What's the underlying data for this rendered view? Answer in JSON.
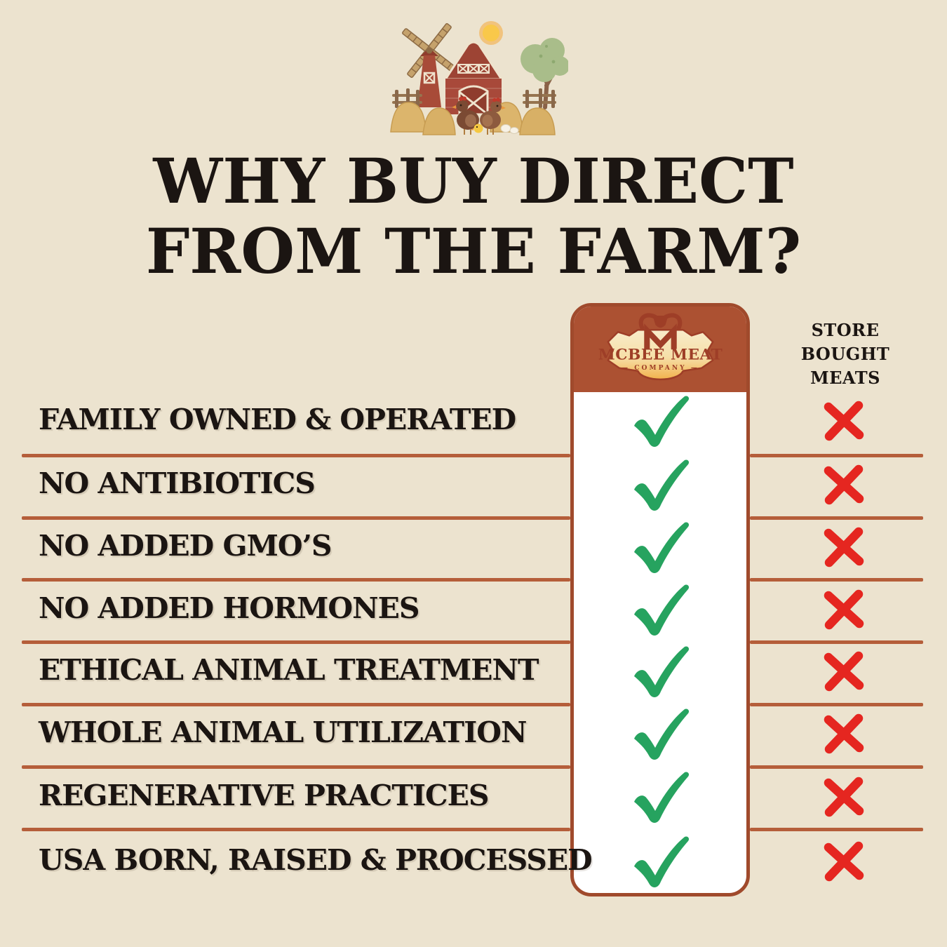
{
  "colors": {
    "bg": "#ece3cf",
    "title": "#1b1512",
    "label": "#1b1512",
    "divider": "#b55e3a",
    "card-border": "#a04a2c",
    "card-header": "#ac5132",
    "card-bg": "#ffffff",
    "check": "#26a35f",
    "cross": "#e52620",
    "badge-cream": "#f8ecca",
    "badge-gold": "#f2b24c",
    "logo-red": "#9e3e27"
  },
  "illustration": {
    "name": "watercolor-farm-scene",
    "elements": [
      "windmill",
      "red-barn",
      "tree",
      "sun",
      "hay-bales",
      "fence",
      "chickens",
      "chick",
      "eggs"
    ]
  },
  "title": {
    "line1": "WHY BUY DIRECT",
    "line2": "FROM THE FARM?"
  },
  "comparison": {
    "farm_column": {
      "brand_line1": "MCBEE MEAT",
      "brand_line2": "COMPANY",
      "mark_meaning": "yes"
    },
    "store_column": {
      "label_line1": "STORE BOUGHT",
      "label_line2": "MEATS",
      "mark_meaning": "no"
    },
    "rows": [
      {
        "label": "FAMILY OWNED & OPERATED",
        "farm": "check",
        "store": "cross"
      },
      {
        "label": "NO ANTIBIOTICS",
        "farm": "check",
        "store": "cross"
      },
      {
        "label": "NO ADDED GMO’S",
        "farm": "check",
        "store": "cross"
      },
      {
        "label": "NO ADDED HORMONES",
        "farm": "check",
        "store": "cross"
      },
      {
        "label": "ETHICAL ANIMAL TREATMENT",
        "farm": "check",
        "store": "cross"
      },
      {
        "label": "WHOLE ANIMAL UTILIZATION",
        "farm": "check",
        "store": "cross"
      },
      {
        "label": "REGENERATIVE PRACTICES",
        "farm": "check",
        "store": "cross"
      },
      {
        "label": "USA BORN, RAISED & PROCESSED",
        "farm": "check",
        "store": "cross"
      }
    ]
  }
}
